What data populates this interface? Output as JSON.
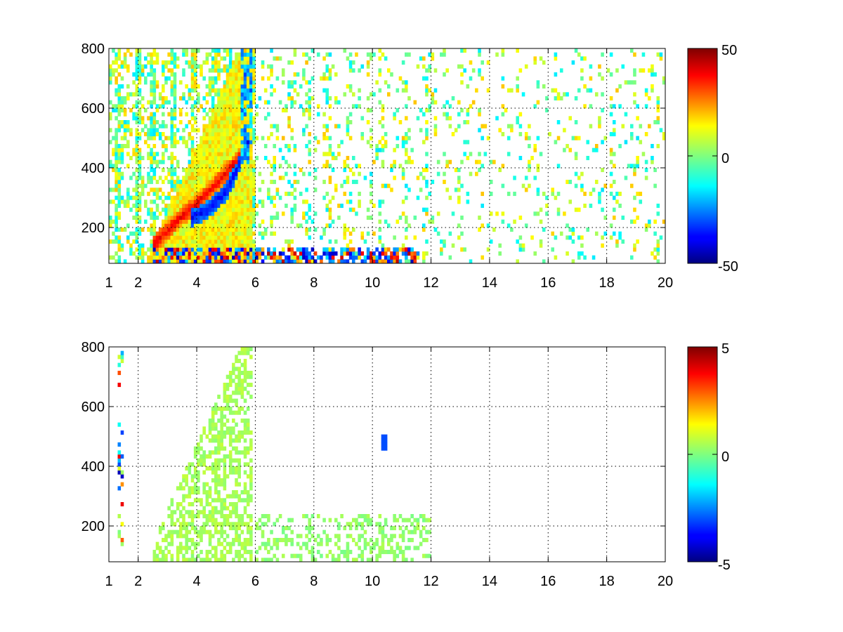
{
  "chart_data": [
    {
      "type": "heatmap",
      "title": "",
      "xlabel": "",
      "ylabel": "",
      "xlim": [
        1,
        20
      ],
      "ylim": [
        80,
        800
      ],
      "xticks": [
        1,
        2,
        4,
        6,
        8,
        10,
        12,
        14,
        16,
        18,
        20
      ],
      "yticks": [
        200,
        400,
        600,
        800
      ],
      "xtick_labels": [
        "1",
        "2",
        "4",
        "6",
        "8",
        "10",
        "12",
        "14",
        "16",
        "18",
        "20"
      ],
      "ytick_labels": [
        "200",
        "400",
        "600",
        "800"
      ],
      "grid": true,
      "colormap": "jet",
      "colorbar": {
        "range": [
          -50,
          50
        ],
        "tick_labels": [
          "50",
          "0",
          "-50"
        ]
      },
      "colors": {
        "low": "#00007f",
        "zero": "#7fff7f",
        "high": "#7f0000"
      },
      "features": [
        {
          "description": "positive ridge",
          "x": [
            2.5,
            3.0,
            3.5,
            4.0,
            4.5,
            5.0,
            5.5
          ],
          "y": [
            140,
            190,
            240,
            280,
            330,
            380,
            440
          ],
          "value": 40
        },
        {
          "description": "negative ridge",
          "x": [
            3.8,
            4.2,
            4.6,
            5.0,
            5.4,
            5.8
          ],
          "y": [
            230,
            250,
            280,
            320,
            400,
            500
          ],
          "value": -40
        },
        {
          "description": "low band",
          "x_range": [
            2.5,
            11.5
          ],
          "y": 110,
          "value": "mixed -40..40"
        }
      ]
    },
    {
      "type": "heatmap",
      "title": "",
      "xlabel": "",
      "ylabel": "",
      "xlim": [
        1,
        20
      ],
      "ylim": [
        80,
        800
      ],
      "xticks": [
        1,
        2,
        4,
        6,
        8,
        10,
        12,
        14,
        16,
        18,
        20
      ],
      "yticks": [
        200,
        400,
        600,
        800
      ],
      "xtick_labels": [
        "1",
        "2",
        "4",
        "6",
        "8",
        "10",
        "12",
        "14",
        "16",
        "18",
        "20"
      ],
      "ytick_labels": [
        "200",
        "400",
        "600",
        "800"
      ],
      "grid": true,
      "colormap": "jet",
      "colorbar": {
        "range": [
          -5,
          5
        ],
        "tick_labels": [
          "5",
          "0",
          "-5"
        ]
      },
      "colors": {
        "low": "#00007f",
        "zero": "#7fff7f",
        "high": "#7f0000"
      },
      "features": [
        {
          "description": "near-zero region",
          "x_range": [
            2.5,
            6.0
          ],
          "y_range": [
            80,
            800
          ],
          "value": 0.3
        },
        {
          "description": "low band",
          "x_range": [
            6.0,
            12.0
          ],
          "y": 110,
          "value": 0.2
        },
        {
          "description": "outlier column",
          "x": 10.4,
          "y_range": [
            450,
            500
          ],
          "value": -3
        }
      ]
    }
  ]
}
